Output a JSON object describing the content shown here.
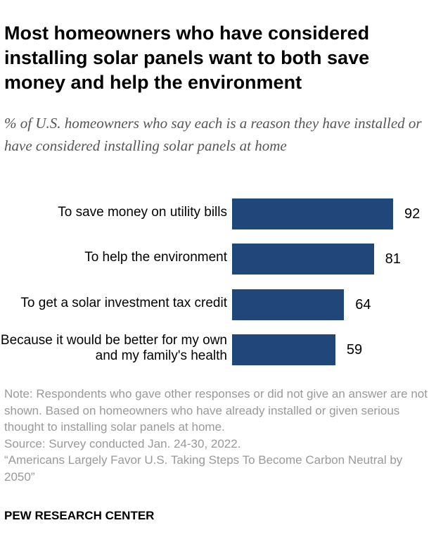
{
  "chart_data": {
    "type": "bar",
    "orientation": "horizontal",
    "title": "Most homeowners who have considered installing solar panels want to both save money and help the environment",
    "subtitle": "% of U.S. homeowners who say each is a reason they have installed or have considered installing solar panels at home",
    "categories": [
      "To save money on utility bills",
      "To help the environment",
      "To get a solar investment tax credit",
      "Because it would be better for my own and my family's health"
    ],
    "values": [
      92,
      81,
      64,
      59
    ],
    "xlim": [
      0,
      100
    ],
    "color": "#21477a",
    "grid": false
  },
  "notes": {
    "note": "Note: Respondents who gave other responses or did not give an answer are not shown. Based on homeowners who have already installed or given serious thought to installing solar panels at home.",
    "source": "Source: Survey conducted Jan. 24-30, 2022.",
    "report": "“Americans Largely Favor U.S. Taking Steps To Become Carbon Neutral by 2050”"
  },
  "brand": "PEW RESEARCH CENTER"
}
